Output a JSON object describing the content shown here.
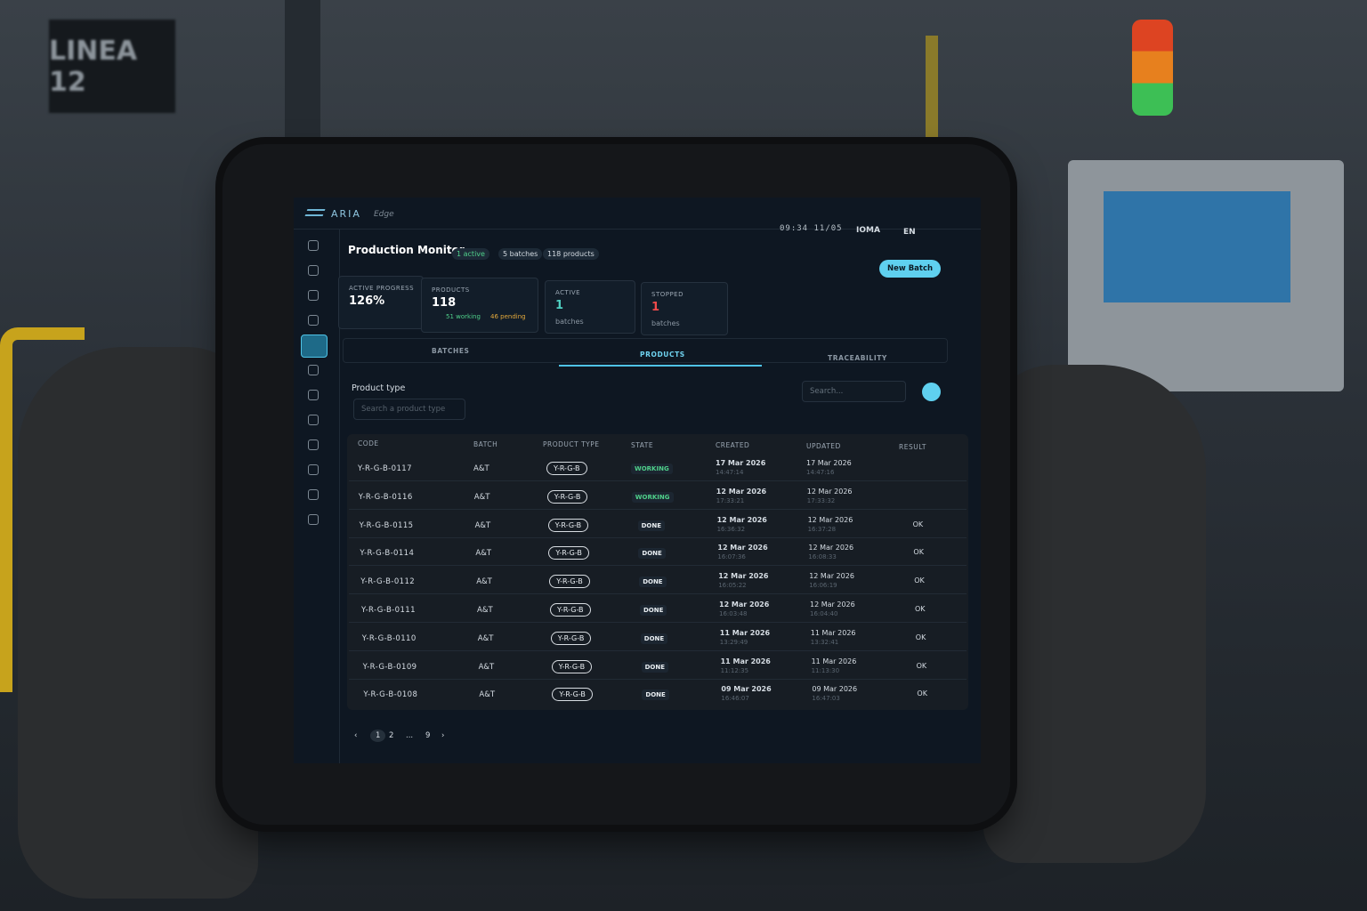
{
  "background": {
    "sign": "LINEA 12"
  },
  "header": {
    "brand": "ARIA",
    "product": "Edge",
    "clock": "09:34  11/05",
    "site": "IOMA",
    "language": "EN"
  },
  "page": {
    "title": "Production Monitor",
    "badges": [
      "1 active",
      "5 batches",
      "118 products"
    ],
    "button": "New Batch"
  },
  "stats": [
    {
      "label": "ACTIVE PROGRESS",
      "value": "126%"
    },
    {
      "label": "PRODUCTS",
      "value": "118",
      "notes": [
        "51 working",
        "46 pending"
      ]
    },
    {
      "label": "ACTIVE",
      "value": "1",
      "unit": "batches"
    },
    {
      "label": "STOPPED",
      "value": "1",
      "unit": "batches"
    }
  ],
  "tabs": [
    "BATCHES",
    "PRODUCTS",
    "TRACEABILITY"
  ],
  "filters": {
    "label": "Product type",
    "select_placeholder": "Search a product type",
    "search_placeholder": "Search..."
  },
  "table": {
    "headers": [
      "CODE",
      "BATCH",
      "PRODUCT TYPE",
      "STATE",
      "CREATED",
      "UPDATED",
      "RESULT"
    ],
    "rows": [
      {
        "code": "Y-R-G-B-0117",
        "batch": "A&T",
        "type": "Y-R-G-B",
        "state": "WORKING",
        "created_date": "17 Mar 2026",
        "created_time": "14:47:14",
        "updated_date": "17 Mar 2026",
        "updated_time": "14:47:16"
      },
      {
        "code": "Y-R-G-B-0116",
        "batch": "A&T",
        "type": "Y-R-G-B",
        "state": "WORKING",
        "created_date": "12 Mar 2026",
        "created_time": "17:33:21",
        "updated_date": "12 Mar 2026",
        "updated_time": "17:33:32"
      },
      {
        "code": "Y-R-G-B-0115",
        "batch": "A&T",
        "type": "Y-R-G-B",
        "state": "DONE",
        "created_date": "12 Mar 2026",
        "created_time": "16:36:32",
        "updated_date": "12 Mar 2026",
        "updated_time": "16:37:28",
        "result": "OK"
      },
      {
        "code": "Y-R-G-B-0114",
        "batch": "A&T",
        "type": "Y-R-G-B",
        "state": "DONE",
        "created_date": "12 Mar 2026",
        "created_time": "16:07:36",
        "updated_date": "12 Mar 2026",
        "updated_time": "16:08:33",
        "result": "OK"
      },
      {
        "code": "Y-R-G-B-0112",
        "batch": "A&T",
        "type": "Y-R-G-B",
        "state": "DONE",
        "created_date": "12 Mar 2026",
        "created_time": "16:05:22",
        "updated_date": "12 Mar 2026",
        "updated_time": "16:06:19",
        "result": "OK"
      },
      {
        "code": "Y-R-G-B-0111",
        "batch": "A&T",
        "type": "Y-R-G-B",
        "state": "DONE",
        "created_date": "12 Mar 2026",
        "created_time": "16:03:48",
        "updated_date": "12 Mar 2026",
        "updated_time": "16:04:40",
        "result": "OK"
      },
      {
        "code": "Y-R-G-B-0110",
        "batch": "A&T",
        "type": "Y-R-G-B",
        "state": "DONE",
        "created_date": "11 Mar 2026",
        "created_time": "13:29:49",
        "updated_date": "11 Mar 2026",
        "updated_time": "13:32:41",
        "result": "OK"
      },
      {
        "code": "Y-R-G-B-0109",
        "batch": "A&T",
        "type": "Y-R-G-B",
        "state": "DONE",
        "created_date": "11 Mar 2026",
        "created_time": "11:12:35",
        "updated_date": "11 Mar 2026",
        "updated_time": "11:13:30",
        "result": "OK"
      },
      {
        "code": "Y-R-G-B-0108",
        "batch": "A&T",
        "type": "Y-R-G-B",
        "state": "DONE",
        "created_date": "09 Mar 2026",
        "created_time": "16:46:07",
        "updated_date": "09 Mar 2026",
        "updated_time": "16:47:03",
        "result": "OK"
      }
    ]
  },
  "pagination": [
    "‹",
    "1",
    "2",
    "...",
    "9",
    "›"
  ]
}
